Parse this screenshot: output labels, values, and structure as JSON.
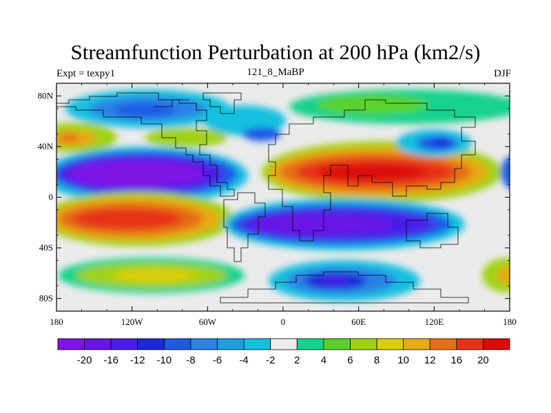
{
  "title": "Streamfunction Perturbation at 200 hPa (km2/s)",
  "left_label": "Expt = texpy1",
  "center_label": "121_8_MaBP",
  "right_label": "DJF",
  "lat_ticks": [
    "80N",
    "40N",
    "0",
    "40S",
    "80S"
  ],
  "lon_ticks": [
    "180",
    "120W",
    "60W",
    "0",
    "60E",
    "120E",
    "180"
  ],
  "colorbar": {
    "labels": [
      "-20",
      "-16",
      "-12",
      "-10",
      "-8",
      "-6",
      "-4",
      "-2",
      "2",
      "4",
      "6",
      "8",
      "10",
      "12",
      "16",
      "20"
    ],
    "colors": [
      "#7e14e6",
      "#6a14e6",
      "#4a1ee8",
      "#1e28d8",
      "#1e5ae6",
      "#2a82e6",
      "#1ea0e0",
      "#14c0e0",
      "#ebebeb",
      "#14d28c",
      "#5ad22a",
      "#a0d214",
      "#dccd0a",
      "#e6aa14",
      "#e66e14",
      "#e63214",
      "#dc0a0a"
    ]
  },
  "chart_data": {
    "type": "heatmap",
    "title": "Streamfunction Perturbation at 200 hPa (km2/s)",
    "field": "streamfunction perturbation",
    "level": "200 hPa",
    "units": "km2/s",
    "experiment": "texpy1",
    "case": "121_8_MaBP",
    "season": "DJF",
    "xlim": [
      -180,
      180
    ],
    "ylim": [
      -90,
      90
    ],
    "levels": [
      -20,
      -16,
      -12,
      -10,
      -8,
      -6,
      -4,
      -2,
      2,
      4,
      6,
      8,
      10,
      12,
      16,
      20
    ],
    "features": [
      {
        "lon": -130,
        "lat": 20,
        "value": -22
      },
      {
        "lon": -105,
        "lat": -17,
        "value": 20
      },
      {
        "lon": 75,
        "lat": 20,
        "value": 21
      },
      {
        "lon": 35,
        "lat": -22,
        "value": -20
      },
      {
        "lon": 40,
        "lat": -65,
        "value": -16
      },
      {
        "lon": 130,
        "lat": 42,
        "value": -12
      },
      {
        "lon": -95,
        "lat": 65,
        "value": -10
      },
      {
        "lon": -165,
        "lat": 47,
        "value": 14
      },
      {
        "lon": -90,
        "lat": -62,
        "value": 8
      },
      {
        "lon": 110,
        "lat": 65,
        "value": 4
      },
      {
        "lon": 172,
        "lat": -60,
        "value": 14
      },
      {
        "lon": 176,
        "lat": 20,
        "value": -12
      }
    ]
  }
}
